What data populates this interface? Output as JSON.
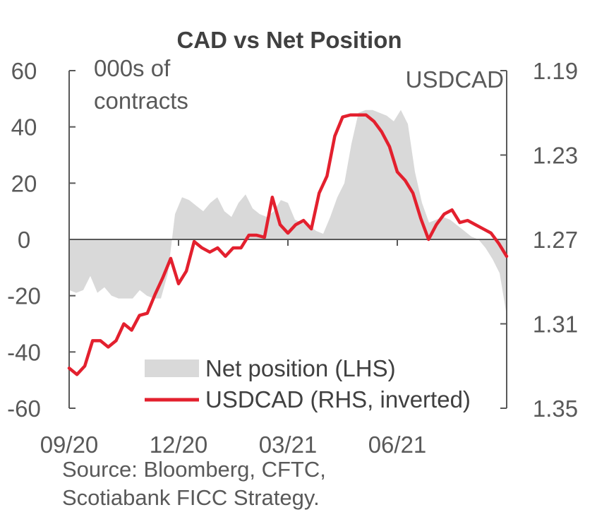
{
  "chart_data": {
    "type": "area",
    "title": "CAD vs Net Position",
    "left_axis_unit": [
      "000s of",
      "contracts"
    ],
    "right_axis_unit": "USDCAD",
    "ylim_left": [
      -60,
      60
    ],
    "yticks_left": [
      "60",
      "40",
      "20",
      "0",
      "-20",
      "-40",
      "-60"
    ],
    "ylim_right_inverted": [
      1.19,
      1.35
    ],
    "yticks_right": [
      "1.19",
      "1.23",
      "1.27",
      "1.31",
      "1.35"
    ],
    "x_tick_labels": [
      "09/20",
      "12/20",
      "03/21",
      "06/21"
    ],
    "legend": [
      {
        "label": "Net position (LHS)",
        "kind": "area",
        "color": "#d9d9d9"
      },
      {
        "label": "USDCAD (RHS, inverted)",
        "kind": "line",
        "color": "#e3202e"
      }
    ],
    "series": [
      {
        "name": "Net position (LHS)",
        "axis": "left",
        "values": [
          -18,
          -19,
          -18,
          -13,
          -19,
          -17,
          -20,
          -21,
          -21,
          -21,
          -18,
          -20,
          -21,
          -21,
          -12,
          9,
          15,
          14,
          12,
          10,
          13,
          15,
          10,
          8,
          13,
          16,
          11,
          9,
          8,
          10,
          14,
          13,
          7,
          6,
          5,
          3,
          2,
          8,
          15,
          20,
          34,
          45,
          46,
          46,
          45,
          44,
          42,
          46,
          41,
          24,
          13,
          6,
          7,
          8,
          7,
          5,
          3,
          1,
          0,
          -3,
          -7,
          -12,
          -27
        ]
      },
      {
        "name": "USDCAD (RHS, inverted)",
        "axis": "right",
        "values": [
          1.331,
          1.334,
          1.33,
          1.318,
          1.318,
          1.321,
          1.318,
          1.31,
          1.313,
          1.306,
          1.305,
          1.296,
          1.288,
          1.279,
          1.291,
          1.285,
          1.271,
          1.274,
          1.276,
          1.274,
          1.278,
          1.274,
          1.274,
          1.268,
          1.268,
          1.269,
          1.25,
          1.263,
          1.267,
          1.263,
          1.261,
          1.265,
          1.248,
          1.24,
          1.221,
          1.212,
          1.211,
          1.211,
          1.211,
          1.214,
          1.219,
          1.226,
          1.238,
          1.242,
          1.248,
          1.26,
          1.27,
          1.263,
          1.258,
          1.256,
          1.262,
          1.261,
          1.263,
          1.265,
          1.267,
          1.272,
          1.278
        ]
      }
    ]
  },
  "source": [
    "Source: Bloomberg, CFTC,",
    "Scotiabank FICC Strategy."
  ]
}
